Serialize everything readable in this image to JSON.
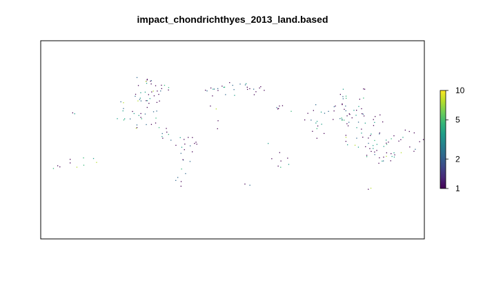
{
  "title": "impact_chondrichthyes_2013_land.based",
  "legend": {
    "scale": "log",
    "range": [
      1,
      10
    ],
    "ticks": [
      {
        "value": 1,
        "label": "1"
      },
      {
        "value": 2,
        "label": "2"
      },
      {
        "value": 5,
        "label": "5"
      },
      {
        "value": 10,
        "label": "10"
      }
    ],
    "colors": [
      "#440154",
      "#482878",
      "#3e4989",
      "#31688e",
      "#26828e",
      "#1f9e89",
      "#35b779",
      "#6ece58",
      "#b5de2b",
      "#fde725"
    ]
  }
}
